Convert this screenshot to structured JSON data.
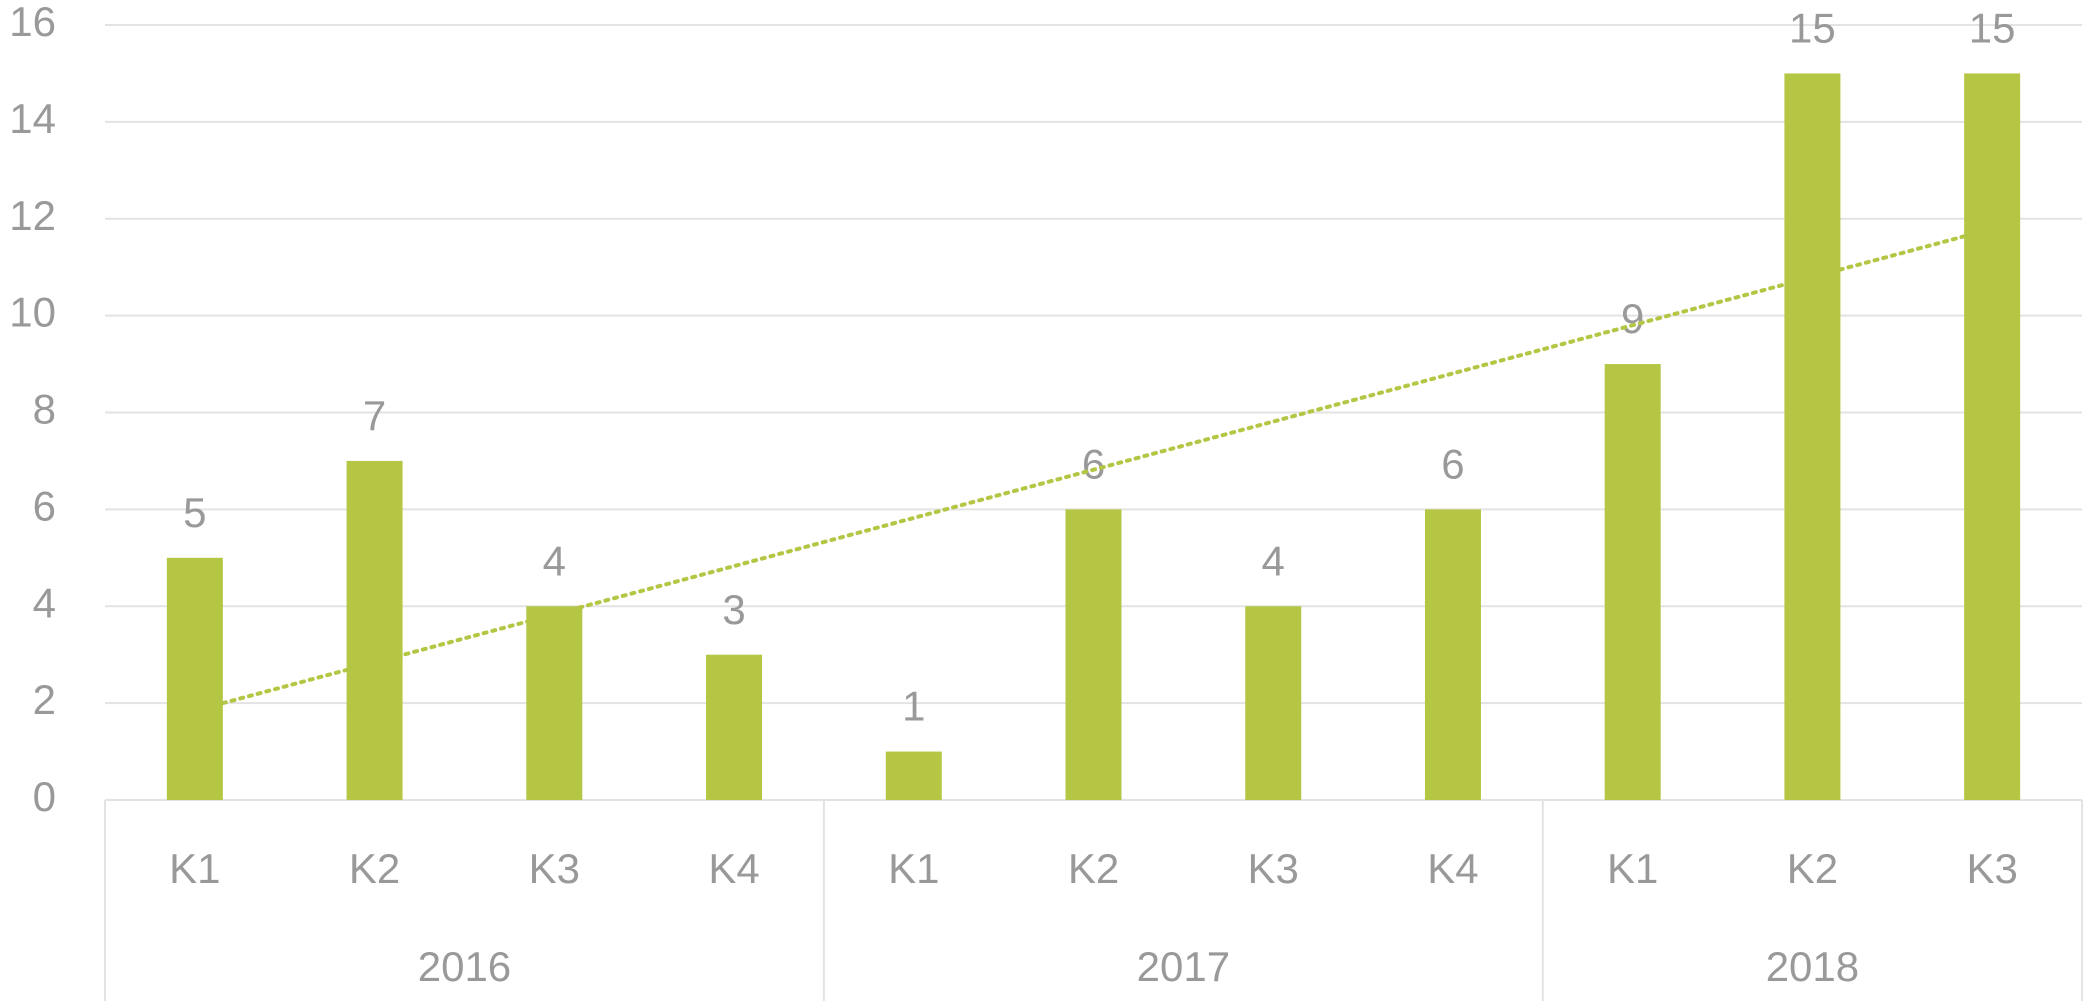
{
  "chart_data": {
    "type": "bar",
    "groups": [
      {
        "name": "2016",
        "categories": [
          "K1",
          "K2",
          "K3",
          "K4"
        ]
      },
      {
        "name": "2017",
        "categories": [
          "K1",
          "K2",
          "K3",
          "K4"
        ]
      },
      {
        "name": "2018",
        "categories": [
          "K1",
          "K2",
          "K3"
        ]
      }
    ],
    "values": [
      5,
      7,
      4,
      3,
      1,
      6,
      4,
      6,
      9,
      15,
      15
    ],
    "color": "#b5c644",
    "ylim": [
      0,
      16
    ],
    "yticks": [
      0,
      2,
      4,
      6,
      8,
      10,
      12,
      14,
      16
    ],
    "grid": true,
    "trendline": "linear",
    "data_labels": true
  }
}
